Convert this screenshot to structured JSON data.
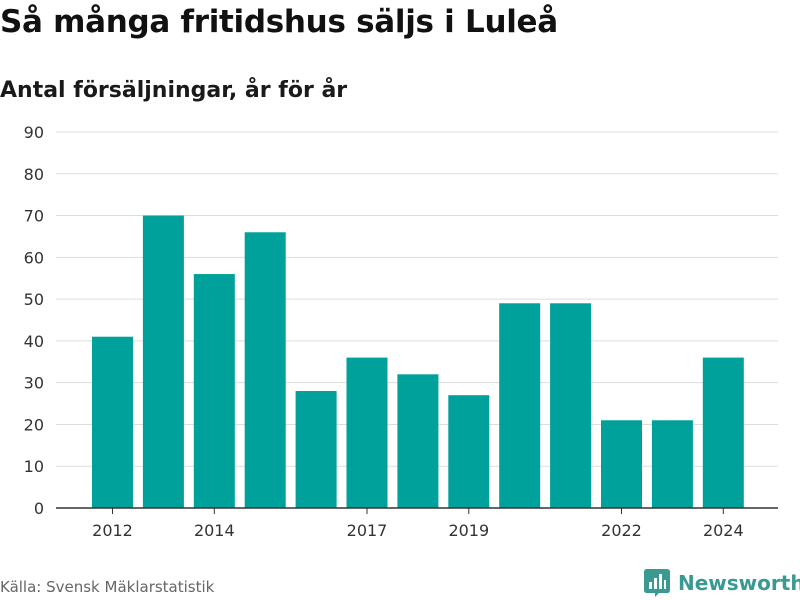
{
  "title": "Så många fritidshus säljs i Luleå",
  "subtitle": "Antal försäljningar, år för år",
  "source": "Källa: Svensk Mäklarstatistik",
  "brand": {
    "name": "Newsworthy",
    "icon": "bar-chart-logo-icon",
    "color": "#3a9a92"
  },
  "chart_data": {
    "type": "bar",
    "categories": [
      "2012",
      "2013",
      "2014",
      "2015",
      "2016",
      "2017",
      "2018",
      "2019",
      "2020",
      "2021",
      "2022",
      "2023",
      "2024"
    ],
    "values": [
      41,
      70,
      56,
      66,
      28,
      36,
      32,
      27,
      49,
      49,
      21,
      21,
      36
    ],
    "xticks": [
      "2012",
      "2014",
      "2017",
      "2019",
      "2022",
      "2024"
    ],
    "yticks": [
      0,
      10,
      20,
      30,
      40,
      50,
      60,
      70,
      80,
      90
    ],
    "ylim": [
      0,
      90
    ],
    "grid": true,
    "bar_color": "#00a19a"
  }
}
